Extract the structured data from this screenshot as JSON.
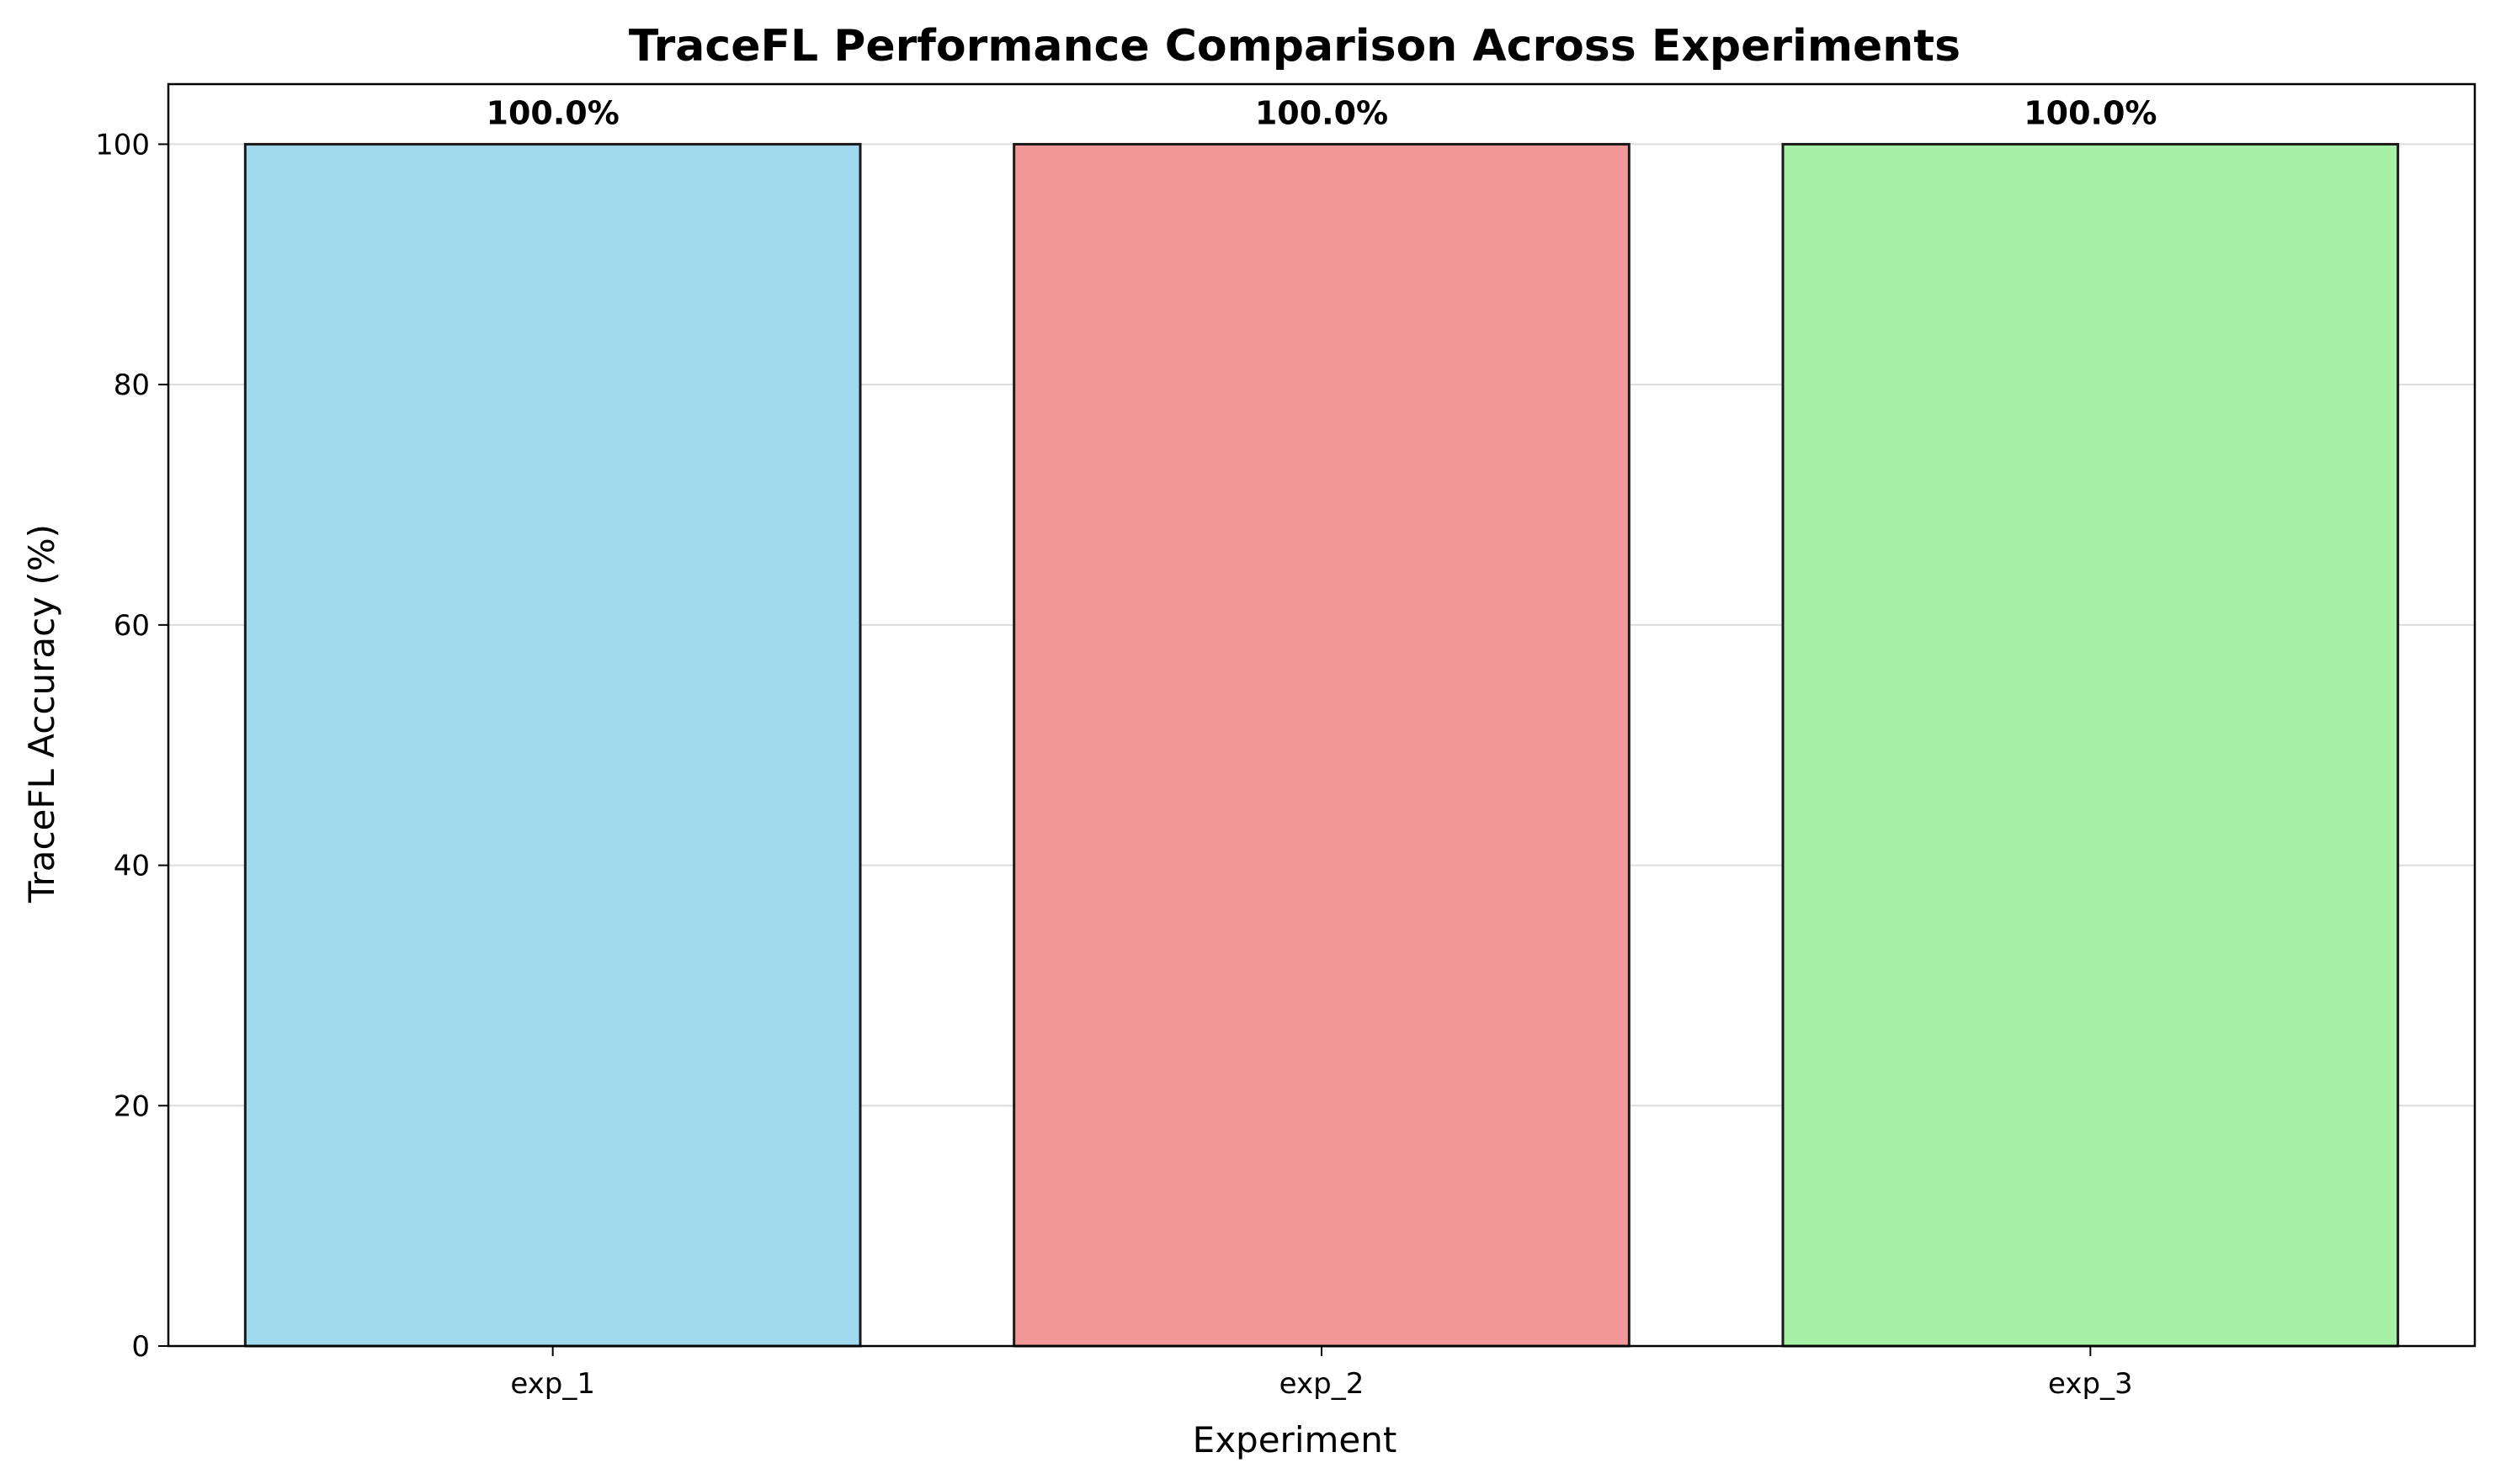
{
  "chart_data": {
    "type": "bar",
    "title": "TraceFL Performance Comparison Across Experiments",
    "xlabel": "Experiment",
    "ylabel": "TraceFL Accuracy (%)",
    "categories": [
      "exp_1",
      "exp_2",
      "exp_3"
    ],
    "values": [
      100.0,
      100.0,
      100.0
    ],
    "data_labels": [
      "100.0%",
      "100.0%",
      "100.0%"
    ],
    "colors": [
      "#a0d8ee",
      "#f39898",
      "#a6f1a6"
    ],
    "edge_color": "#1a1a1a",
    "ylim": [
      0,
      105
    ],
    "yticks": [
      0,
      20,
      40,
      60,
      80,
      100
    ],
    "grid": "horizontal",
    "legend": "none"
  }
}
